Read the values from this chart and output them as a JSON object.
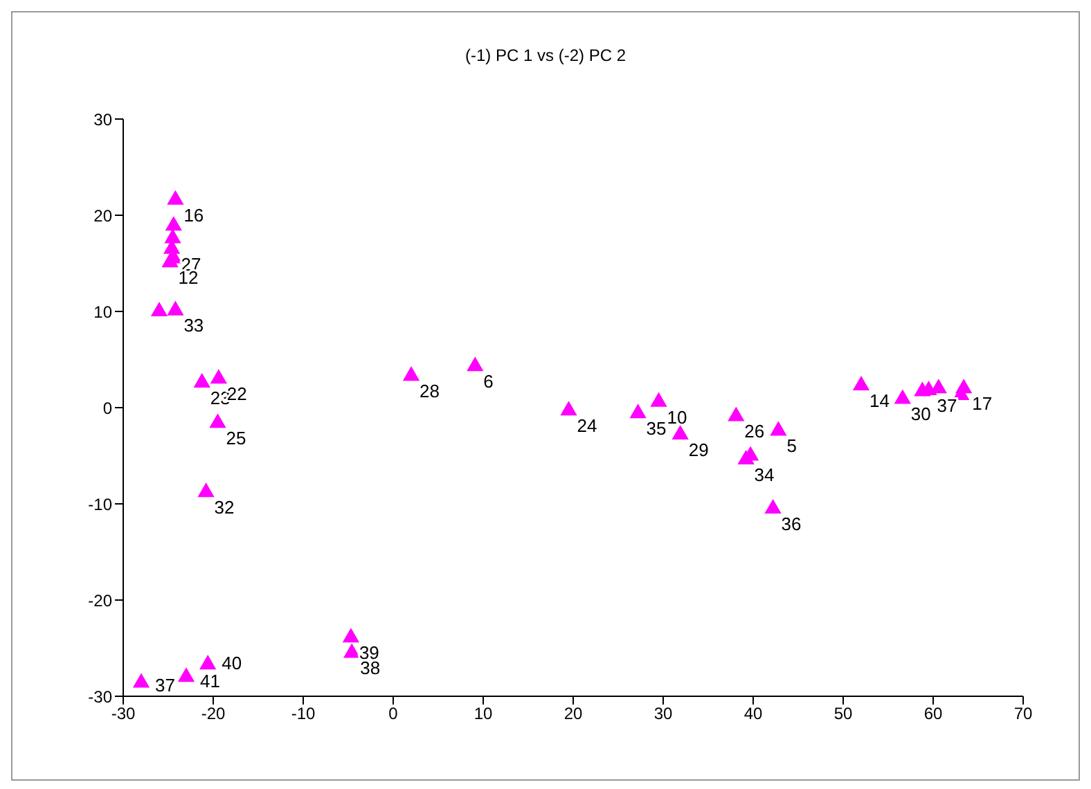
{
  "chart_data": {
    "type": "scatter",
    "title": "(-1) PC 1 vs (-2) PC 2",
    "x": [
      -24.2,
      -24.4,
      -24.5,
      -24.6,
      -24.4,
      -24.8,
      -26,
      -24.2,
      -21.25,
      -19.4,
      -19.5,
      -20.8,
      -28,
      -23,
      -20.6,
      -4.7,
      -4.6,
      2.0,
      9.1,
      19.5,
      27.2,
      29.5,
      31.9,
      38.1,
      42.8,
      39.2,
      39.7,
      42.2,
      52,
      56.6,
      58.8,
      59.5,
      60.6,
      63.4,
      63.1
    ],
    "values": [
      21.6,
      18.9,
      17.6,
      16.5,
      15.5,
      15.1,
      10,
      10.1,
      2.6,
      3.0,
      -1.6,
      -8.8,
      -28.6,
      -28,
      -26.7,
      -23.9,
      -25.5,
      3.3,
      4.3,
      -0.3,
      -0.6,
      0.6,
      -2.8,
      -0.9,
      -2.4,
      -5.4,
      -5,
      -10.5,
      2.3,
      0.9,
      1.7,
      1.8,
      2.0,
      2.0,
      1.3
    ],
    "annotations": [
      {
        "text": "16",
        "x": -24.2,
        "y": 21.6
      },
      {
        "text": "27",
        "x": -24.5,
        "y": 16.5
      },
      {
        "text": "12",
        "x": -24.8,
        "y": 15.1
      },
      {
        "text": "33",
        "x": -24.2,
        "y": 10.1
      },
      {
        "text": "23",
        "x": -21.25,
        "y": 2.6
      },
      {
        "text": "22",
        "x": -19.4,
        "y": 3.0
      },
      {
        "text": "25",
        "x": -19.5,
        "y": -1.6
      },
      {
        "text": "32",
        "x": -20.8,
        "y": -8.8
      },
      {
        "text": "37",
        "x": -28,
        "y": -28.6
      },
      {
        "text": "41",
        "x": -23,
        "y": -28
      },
      {
        "text": "40",
        "x": -20.6,
        "y": -26.7
      },
      {
        "text": "39",
        "x": -4.7,
        "y": -23.9
      },
      {
        "text": "38",
        "x": -4.6,
        "y": -25.5
      },
      {
        "text": "28",
        "x": 2.0,
        "y": 3.3
      },
      {
        "text": "6",
        "x": 9.1,
        "y": 4.3
      },
      {
        "text": "24",
        "x": 19.5,
        "y": -0.3
      },
      {
        "text": "35",
        "x": 27.2,
        "y": -0.6
      },
      {
        "text": "10",
        "x": 29.5,
        "y": 0.6
      },
      {
        "text": "29",
        "x": 31.9,
        "y": -2.8
      },
      {
        "text": "26",
        "x": 38.1,
        "y": -0.9
      },
      {
        "text": "5",
        "x": 42.8,
        "y": -2.4
      },
      {
        "text": "34",
        "x": 39.2,
        "y": -5.4
      },
      {
        "text": "36",
        "x": 42.2,
        "y": -10.5
      },
      {
        "text": "14",
        "x": 52,
        "y": 2.3
      },
      {
        "text": "30",
        "x": 56.6,
        "y": 0.9
      },
      {
        "text": "37",
        "x": 59.5,
        "y": 1.8
      },
      {
        "text": "17",
        "x": 63.4,
        "y": 2.0
      }
    ],
    "color": "#ff00ff",
    "marker": "triangle",
    "xlim": [
      -30,
      70
    ],
    "xticks": [
      -30,
      -20,
      -10,
      0,
      10,
      20,
      30,
      40,
      50,
      60,
      70
    ],
    "ylim": [
      -30,
      30
    ],
    "yticks": [
      -30,
      -20,
      -10,
      0,
      10,
      20,
      30
    ],
    "grid": false
  }
}
